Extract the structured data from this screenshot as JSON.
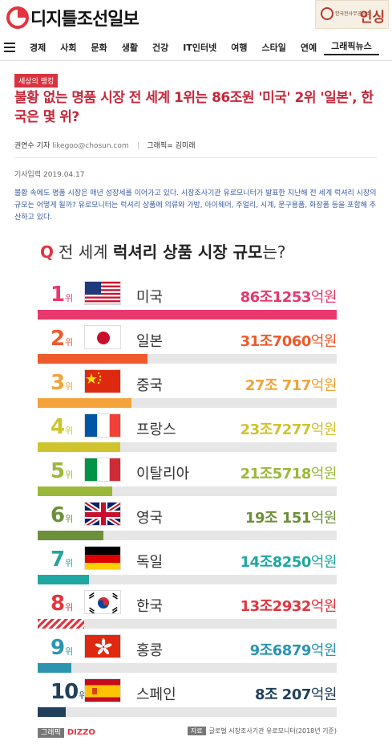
{
  "header": {
    "logo_text": "디지틀조선일보",
    "ad_text": "한국전사무공급소",
    "ad_big": "인싱"
  },
  "nav": {
    "items": [
      "경제",
      "사회",
      "문화",
      "생활",
      "건강",
      "IT인터넷",
      "여행",
      "스타일",
      "연예",
      "그래픽뉴스"
    ],
    "active": "그래픽뉴스"
  },
  "article": {
    "section": "세상의 랭킹",
    "headline": "불황 없는 명품 시장 전 세계 1위는 86조원 '미국' 2위 '일본', 한국은 몇 위?",
    "author": "권연수 기자",
    "email": "likegoo@chosun.com",
    "graphic_credit": "그래픽= 김미래",
    "date_label": "기사입력",
    "date": "2019.04.17",
    "intro": "불황 속에도 명품 시장은 매년 성장세를 이어가고 있다. 시장조사기관 유로모니터가 발표한 지난해 전 세계 럭셔리 시장의 규모는 어떻게 될까? 유로모니터는 럭셔리 상품에 의류와 가방, 아이웨어, 주얼리, 시계, 문구용품, 화장품 등을 포함해 추산하고 있다."
  },
  "graphic": {
    "title_q": "Q",
    "title_pre": "전 세계 ",
    "title_bold": "럭셔리 상품 시장 규모",
    "title_post": "는?",
    "rank_suffix": "위",
    "credit_tag": "그래픽",
    "credit_brand": "DIZZO",
    "source_tag": "자료",
    "source_text": "글로벌 시장조사기관 유로모니터(2018년 기준)"
  },
  "chart_data": {
    "type": "bar",
    "title": "전 세계 럭셔리 상품 시장 규모는?",
    "unit": "억원",
    "series": [
      {
        "rank": "1",
        "country": "미국",
        "flag": "us-flag-icon",
        "jo": "86조",
        "eok": "1253",
        "value": 861253,
        "color": "#e8386d"
      },
      {
        "rank": "2",
        "country": "일본",
        "flag": "japan-flag-icon",
        "jo": "31조",
        "eok": "7060",
        "value": 317060,
        "color": "#ef5a2c"
      },
      {
        "rank": "3",
        "country": "중국",
        "flag": "china-flag-icon",
        "jo": "27조",
        "eok": " 717",
        "value": 270717,
        "color": "#f3a33a"
      },
      {
        "rank": "4",
        "country": "프랑스",
        "flag": "france-flag-icon",
        "jo": "23조",
        "eok": "7277",
        "value": 237277,
        "color": "#cfc42d"
      },
      {
        "rank": "5",
        "country": "이탈리아",
        "flag": "italy-flag-icon",
        "jo": "21조",
        "eok": "5718",
        "value": 215718,
        "color": "#9bb83a"
      },
      {
        "rank": "6",
        "country": "영국",
        "flag": "uk-flag-icon",
        "jo": "19조",
        "eok": " 151",
        "value": 190151,
        "color": "#6e8f3a"
      },
      {
        "rank": "7",
        "country": "독일",
        "flag": "germany-flag-icon",
        "jo": "14조",
        "eok": "8250",
        "value": 148250,
        "color": "#1fa7a1"
      },
      {
        "rank": "8",
        "country": "한국",
        "flag": "korea-flag-icon",
        "jo": "13조",
        "eok": "2932",
        "value": 132932,
        "color": "#e2353f",
        "hatched": true
      },
      {
        "rank": "9",
        "country": "홍콩",
        "flag": "hongkong-flag-icon",
        "jo": "9조",
        "eok": "6879",
        "value": 96879,
        "color": "#2b95b0"
      },
      {
        "rank": "10",
        "country": "스페인",
        "flag": "spain-flag-icon",
        "jo": "8조",
        "eok": " 207",
        "value": 80207,
        "color": "#21405c"
      }
    ],
    "xlim": [
      0,
      861253
    ]
  }
}
